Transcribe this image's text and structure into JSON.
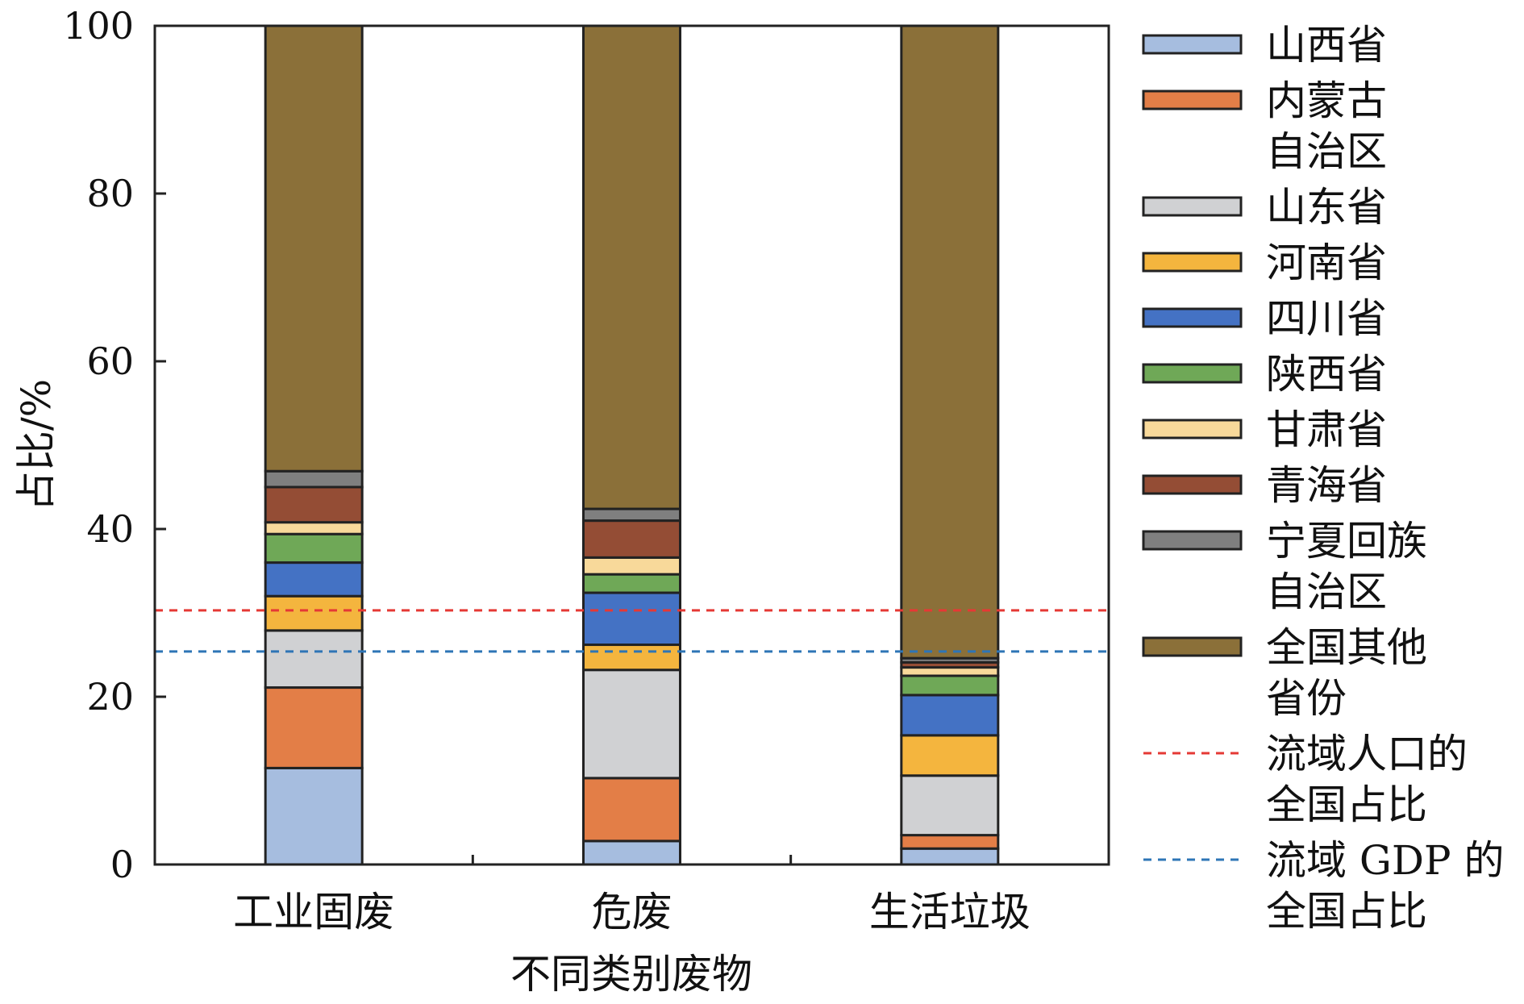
{
  "chart_data": {
    "type": "bar",
    "stacked": true,
    "title": "",
    "xlabel": "不同类别废物",
    "ylabel": "占比/%",
    "ylim": [
      0,
      100
    ],
    "yticks": [
      "0",
      "20",
      "40",
      "60",
      "80",
      "100"
    ],
    "categories": [
      "工业固废",
      "危废",
      "生活垃圾"
    ],
    "series": [
      {
        "name": "山西省",
        "legend_lines": [
          "山西省"
        ],
        "color": "#a6bddf",
        "values": [
          11.5,
          2.8,
          1.9
        ]
      },
      {
        "name": "内蒙古自治区",
        "legend_lines": [
          "内蒙古",
          "自治区"
        ],
        "color": "#e37e47",
        "values": [
          9.6,
          7.5,
          1.6
        ]
      },
      {
        "name": "山东省",
        "legend_lines": [
          "山东省"
        ],
        "color": "#d0d1d3",
        "values": [
          6.8,
          12.9,
          7.1
        ]
      },
      {
        "name": "河南省",
        "legend_lines": [
          "河南省"
        ],
        "color": "#f4b53e",
        "values": [
          4.1,
          3.0,
          4.8
        ]
      },
      {
        "name": "四川省",
        "legend_lines": [
          "四川省"
        ],
        "color": "#4472c4",
        "values": [
          4.0,
          6.2,
          4.8
        ]
      },
      {
        "name": "陕西省",
        "legend_lines": [
          "陕西省"
        ],
        "color": "#6fa857",
        "values": [
          3.4,
          2.2,
          2.3
        ]
      },
      {
        "name": "甘肃省",
        "legend_lines": [
          "甘肃省"
        ],
        "color": "#f8d99a",
        "values": [
          1.4,
          2.0,
          1.0
        ]
      },
      {
        "name": "青海省",
        "legend_lines": [
          "青海省"
        ],
        "color": "#944d35",
        "values": [
          4.2,
          4.4,
          0.6
        ]
      },
      {
        "name": "宁夏回族自治区",
        "legend_lines": [
          "宁夏回族",
          "自治区"
        ],
        "color": "#7f7f7f",
        "values": [
          1.9,
          1.4,
          0.5
        ]
      },
      {
        "name": "全国其他省份",
        "legend_lines": [
          "全国其他",
          "省份"
        ],
        "color": "#8b7039",
        "values": [
          53.1,
          57.6,
          75.4
        ]
      }
    ],
    "reference_lines": [
      {
        "name": "流域人口的全国占比",
        "legend_lines": [
          "流域人口的",
          "全国占比"
        ],
        "color": "#e53935",
        "value": 30.3
      },
      {
        "name": "流域 GDP 的全国占比",
        "legend_lines": [
          "流域 GDP 的",
          "全国占比"
        ],
        "color": "#2e75b6",
        "value": 25.4
      }
    ],
    "legend_position": "right",
    "grid": false
  }
}
